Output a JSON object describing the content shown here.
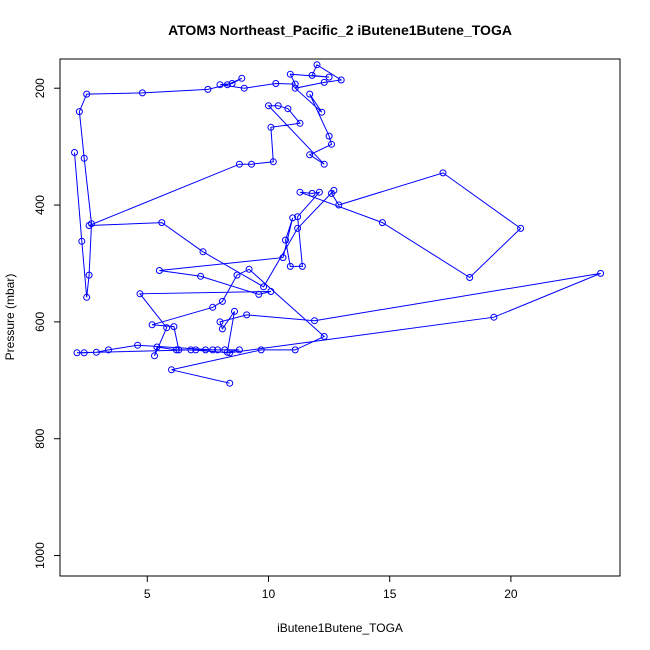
{
  "chart_data": {
    "type": "line",
    "title": "ATOM3 Northeast_Pacific_2 iButene1Butene_TOGA",
    "xlabel": "iButene1Butene_TOGA",
    "ylabel": "Pressure (mbar)",
    "xlim": [
      1.4,
      24.5
    ],
    "ylim": [
      1035,
      150
    ],
    "y_reversed": true,
    "x_ticks": [
      5,
      10,
      15,
      20
    ],
    "y_ticks": [
      200,
      400,
      600,
      800,
      1000
    ],
    "grid": false,
    "legend": "none",
    "series_color": "#0000ff",
    "marker": "open-circle",
    "series": [
      {
        "x": [
          2.0,
          2.3,
          2.5,
          2.6,
          2.7,
          2.4,
          2.2,
          2.5,
          4.8,
          7.5,
          8.3,
          8.9,
          8.5,
          8.0,
          9.0,
          10.3,
          11.1,
          10.9,
          12.5,
          11.8,
          12.0,
          13.0,
          12.3,
          11.1,
          12.2,
          11.7,
          12.5,
          12.6,
          11.7,
          12.3,
          10.0,
          10.4,
          10.8,
          11.3,
          10.1,
          10.2,
          9.3,
          8.8,
          2.6,
          5.6,
          7.3,
          9.8,
          11.2,
          12.7,
          12.6,
          12.9,
          17.2,
          20.4,
          18.3,
          14.7,
          11.3,
          11.8,
          12.1,
          11.2,
          11.4,
          10.9,
          10.7,
          11.0,
          10.6,
          5.5,
          7.2,
          9.6,
          10.1,
          4.7,
          5.8,
          5.3,
          5.4,
          6.2,
          8.2,
          7.7,
          4.6,
          3.4,
          2.9,
          2.4,
          2.1,
          6.8,
          8.4,
          19.3,
          23.7,
          11.9,
          9.1,
          8.0,
          8.1,
          8.6,
          8.3,
          8.8,
          7.9,
          7.4,
          7.0,
          6.3,
          6.1,
          5.2,
          7.7,
          8.1,
          8.7,
          9.2,
          12.3,
          11.1,
          9.7,
          6.0,
          8.4
        ],
        "y": [
          310,
          462,
          558,
          520,
          432,
          320,
          240,
          210,
          208,
          202,
          194,
          183,
          192,
          194,
          200,
          192,
          193,
          176,
          181,
          178,
          160,
          186,
          190,
          200,
          241,
          210,
          282,
          296,
          314,
          330,
          230,
          230,
          235,
          260,
          267,
          326,
          330,
          330,
          435,
          430,
          480,
          540,
          440,
          375,
          380,
          400,
          345,
          440,
          524,
          430,
          378,
          380,
          378,
          420,
          505,
          505,
          460,
          422,
          490,
          512,
          522,
          553,
          548,
          552,
          610,
          658,
          643,
          648,
          648,
          648,
          640,
          648,
          652,
          653,
          653,
          648,
          653,
          592,
          517,
          598,
          588,
          600,
          612,
          582,
          652,
          648,
          648,
          648,
          648,
          648,
          608,
          605,
          575,
          565,
          520,
          510,
          625,
          648,
          648,
          682,
          705
        ]
      }
    ]
  }
}
